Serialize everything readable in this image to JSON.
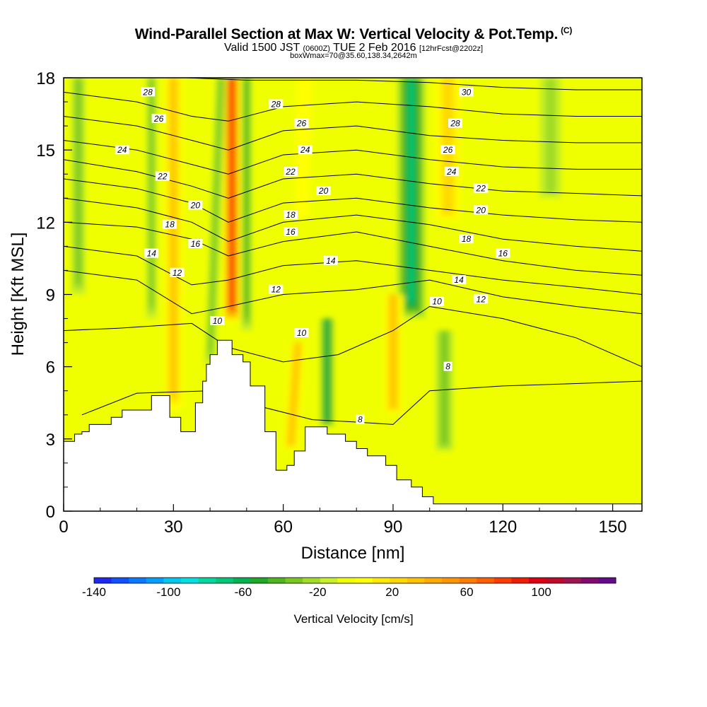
{
  "header": {
    "title": "Wind-Parallel Section at Max W: Vertical Velocity & Pot.Temp.",
    "copyright": "(C)",
    "valid_prefix": "Valid 1500 JST",
    "valid_zulu": "(0600Z)",
    "valid_date": "TUE 2 Feb 2016",
    "forecast_info": "[12hrFcst@2202z]",
    "box_info": "boxWmax=70@35.60,138.34,2642m"
  },
  "chart_data": {
    "type": "heatmap",
    "xlabel": "Distance [nm]",
    "ylabel": "Height [Kft MSL]",
    "xlim": [
      0,
      158
    ],
    "ylim": [
      0,
      18
    ],
    "x_ticks": [
      0,
      30,
      60,
      90,
      120,
      150
    ],
    "x_tick_labels": [
      "0",
      "30",
      "60",
      "90",
      "120",
      "150"
    ],
    "y_ticks": [
      0,
      3,
      6,
      9,
      12,
      15,
      18
    ],
    "y_tick_labels": [
      "0",
      "3",
      "6",
      "9",
      "12",
      "15",
      "18"
    ],
    "colorbar": {
      "label": "Vertical Velocity [cm/s]",
      "min": -140,
      "max": 140,
      "step": 10,
      "tick_values": [
        -140,
        -100,
        -60,
        -20,
        20,
        60,
        100
      ],
      "tick_labels": [
        "-140",
        "-100",
        "-60",
        "-20",
        "20",
        "60",
        "100"
      ],
      "colors": [
        "#1e28f0",
        "#0f50ff",
        "#0a78ff",
        "#00a0ff",
        "#00c8f0",
        "#00e0e0",
        "#00d8a0",
        "#00c878",
        "#00b450",
        "#20a828",
        "#50b41e",
        "#7ac81e",
        "#a0dc28",
        "#c8f028",
        "#f0ff00",
        "#ffff00",
        "#ffeb00",
        "#ffd700",
        "#ffc300",
        "#ffaa00",
        "#ff9600",
        "#ff7d00",
        "#ff5f00",
        "#ff3c00",
        "#f01e00",
        "#dc0014",
        "#be0a28",
        "#a01450",
        "#820a6e",
        "#640a8c"
      ]
    },
    "terrain_profile": {
      "x": [
        0,
        3,
        5,
        7,
        11,
        13,
        16,
        19,
        24,
        26,
        29,
        32,
        33,
        36,
        37,
        38,
        39,
        40,
        42,
        44,
        46,
        48,
        49,
        51,
        52,
        55,
        56,
        58,
        59,
        61,
        63,
        65,
        66,
        71,
        72,
        74,
        77,
        80,
        81,
        83,
        85,
        88,
        91,
        93,
        95,
        97,
        98,
        100,
        101,
        103,
        158
      ],
      "height_kft": [
        2.9,
        3.2,
        3.3,
        3.6,
        3.6,
        3.9,
        4.2,
        4.2,
        4.8,
        4.8,
        3.9,
        3.3,
        3.3,
        4.5,
        4.5,
        5.4,
        6.1,
        6.5,
        7.1,
        7.1,
        6.5,
        6.5,
        6.2,
        5.2,
        5.2,
        3.3,
        3.3,
        1.7,
        1.7,
        1.9,
        2.5,
        2.5,
        3.5,
        3.5,
        3.2,
        3.2,
        2.9,
        2.6,
        2.6,
        2.3,
        2.3,
        1.9,
        1.3,
        1.3,
        1.0,
        1.0,
        0.6,
        0.6,
        0.3,
        0.3,
        0.3
      ]
    },
    "vertical_velocity_features": [
      {
        "x": 46,
        "x_top": 46,
        "z_bottom": 7.8,
        "z_top": 18,
        "width_nm": 5,
        "value": 110
      },
      {
        "x": 50,
        "x_top": 50,
        "z_bottom": 7.5,
        "z_top": 18,
        "width_nm": 3,
        "value": -40
      },
      {
        "x": 40,
        "x_top": 43,
        "z_bottom": 6.0,
        "z_top": 18,
        "width_nm": 3,
        "value": -30
      },
      {
        "x": 30,
        "x_top": 30,
        "z_bottom": 4.0,
        "z_top": 18,
        "width_nm": 6,
        "value": 50
      },
      {
        "x": 24,
        "x_top": 24,
        "z_bottom": 8.0,
        "z_top": 18,
        "width_nm": 3,
        "value": -30
      },
      {
        "x": 95,
        "x_top": 95,
        "z_bottom": 8.0,
        "z_top": 18,
        "width_nm": 8,
        "value": -70
      },
      {
        "x": 90,
        "x_top": 90,
        "z_bottom": 4.0,
        "z_top": 9.0,
        "width_nm": 6,
        "value": 50
      },
      {
        "x": 104,
        "x_top": 104,
        "z_bottom": 2.5,
        "z_top": 7.5,
        "width_nm": 5,
        "value": -30
      },
      {
        "x": 72,
        "x_top": 72,
        "z_bottom": 3.5,
        "z_top": 8.0,
        "width_nm": 4,
        "value": -60
      },
      {
        "x": 62,
        "x_top": 64,
        "z_bottom": 2.5,
        "z_top": 7.0,
        "width_nm": 5,
        "value": 50
      },
      {
        "x": 105,
        "x_top": 105,
        "z_bottom": 12.0,
        "z_top": 18,
        "width_nm": 9,
        "value": 40
      },
      {
        "x": 4,
        "x_top": 4,
        "z_bottom": 9.0,
        "z_top": 18,
        "width_nm": 4,
        "value": -30
      },
      {
        "x": 133,
        "x_top": 133,
        "z_bottom": 13.0,
        "z_top": 18,
        "width_nm": 6,
        "value": -20
      },
      {
        "x": 65,
        "x_top": 66,
        "z_bottom": 12.0,
        "z_top": 18,
        "width_nm": 8,
        "value": 20
      }
    ],
    "theta_contours": [
      {
        "level": 8,
        "label": "8",
        "points": [
          [
            5,
            4.0
          ],
          [
            20,
            4.9
          ],
          [
            40,
            5.0
          ],
          [
            55,
            4.3
          ],
          [
            68,
            3.8
          ],
          [
            80,
            3.7
          ],
          [
            90,
            3.6
          ],
          [
            100,
            5.0
          ],
          [
            120,
            5.2
          ],
          [
            140,
            5.3
          ],
          [
            158,
            5.4
          ]
        ]
      },
      {
        "level": 10,
        "label": "10",
        "points": [
          [
            0,
            7.5
          ],
          [
            15,
            7.6
          ],
          [
            35,
            7.8
          ],
          [
            45,
            6.8
          ],
          [
            60,
            6.2
          ],
          [
            75,
            6.5
          ],
          [
            90,
            7.5
          ],
          [
            100,
            8.5
          ],
          [
            120,
            8.0
          ],
          [
            140,
            7.2
          ],
          [
            158,
            6.0
          ]
        ]
      },
      {
        "level": 12,
        "label": "12",
        "points": [
          [
            0,
            10.0
          ],
          [
            20,
            9.6
          ],
          [
            35,
            8.2
          ],
          [
            45,
            8.5
          ],
          [
            60,
            9.0
          ],
          [
            80,
            9.2
          ],
          [
            100,
            9.6
          ],
          [
            120,
            8.9
          ],
          [
            140,
            8.5
          ],
          [
            158,
            8.2
          ]
        ]
      },
      {
        "level": 14,
        "label": "14",
        "points": [
          [
            0,
            11.0
          ],
          [
            20,
            10.6
          ],
          [
            35,
            9.4
          ],
          [
            45,
            9.6
          ],
          [
            60,
            10.2
          ],
          [
            80,
            10.4
          ],
          [
            100,
            10.0
          ],
          [
            120,
            9.6
          ],
          [
            140,
            9.3
          ],
          [
            158,
            9.0
          ]
        ]
      },
      {
        "level": 16,
        "label": "16",
        "points": [
          [
            0,
            12.0
          ],
          [
            20,
            11.8
          ],
          [
            35,
            11.3
          ],
          [
            45,
            10.6
          ],
          [
            60,
            11.2
          ],
          [
            80,
            11.6
          ],
          [
            100,
            11.0
          ],
          [
            120,
            10.4
          ],
          [
            140,
            10.0
          ],
          [
            158,
            9.8
          ]
        ]
      },
      {
        "level": 18,
        "label": "18",
        "points": [
          [
            0,
            13.0
          ],
          [
            20,
            12.6
          ],
          [
            35,
            12.0
          ],
          [
            45,
            11.2
          ],
          [
            60,
            12.0
          ],
          [
            80,
            12.3
          ],
          [
            100,
            11.9
          ],
          [
            120,
            11.3
          ],
          [
            140,
            11.0
          ],
          [
            158,
            10.8
          ]
        ]
      },
      {
        "level": 20,
        "label": "20",
        "points": [
          [
            0,
            13.8
          ],
          [
            20,
            13.4
          ],
          [
            35,
            12.8
          ],
          [
            45,
            12.0
          ],
          [
            60,
            12.8
          ],
          [
            80,
            13.0
          ],
          [
            100,
            12.6
          ],
          [
            120,
            12.3
          ],
          [
            140,
            12.1
          ],
          [
            158,
            12.0
          ]
        ]
      },
      {
        "level": 22,
        "label": "22",
        "points": [
          [
            0,
            14.6
          ],
          [
            20,
            14.1
          ],
          [
            35,
            13.5
          ],
          [
            45,
            13.0
          ],
          [
            60,
            13.8
          ],
          [
            80,
            14.0
          ],
          [
            100,
            13.6
          ],
          [
            120,
            13.3
          ],
          [
            140,
            13.2
          ],
          [
            158,
            13.1
          ]
        ]
      },
      {
        "level": 24,
        "label": "24",
        "points": [
          [
            0,
            15.4
          ],
          [
            20,
            15.0
          ],
          [
            35,
            14.4
          ],
          [
            45,
            14.0
          ],
          [
            60,
            14.8
          ],
          [
            80,
            15.0
          ],
          [
            100,
            14.6
          ],
          [
            120,
            14.3
          ],
          [
            140,
            14.2
          ],
          [
            158,
            14.2
          ]
        ]
      },
      {
        "level": 26,
        "label": "26",
        "points": [
          [
            0,
            16.4
          ],
          [
            20,
            16.0
          ],
          [
            35,
            15.4
          ],
          [
            45,
            15.0
          ],
          [
            60,
            15.8
          ],
          [
            80,
            16.0
          ],
          [
            100,
            15.6
          ],
          [
            120,
            15.4
          ],
          [
            140,
            15.3
          ],
          [
            158,
            15.3
          ]
        ]
      },
      {
        "level": 28,
        "label": "28",
        "points": [
          [
            0,
            17.4
          ],
          [
            20,
            17.0
          ],
          [
            35,
            16.4
          ],
          [
            45,
            16.2
          ],
          [
            60,
            16.8
          ],
          [
            80,
            17.0
          ],
          [
            100,
            16.8
          ],
          [
            120,
            16.5
          ],
          [
            140,
            16.4
          ],
          [
            158,
            16.4
          ]
        ]
      },
      {
        "level": 30,
        "label": "30",
        "points": [
          [
            0,
            18.2
          ],
          [
            50,
            17.9
          ],
          [
            80,
            17.9
          ],
          [
            100,
            17.8
          ],
          [
            120,
            17.6
          ],
          [
            140,
            17.5
          ],
          [
            158,
            17.5
          ]
        ]
      }
    ],
    "contour_labels": [
      {
        "label": "28",
        "x": 23,
        "y": 17.4
      },
      {
        "label": "26",
        "x": 26,
        "y": 16.3
      },
      {
        "label": "24",
        "x": 16,
        "y": 15.0
      },
      {
        "label": "22",
        "x": 27,
        "y": 13.9
      },
      {
        "label": "20",
        "x": 36,
        "y": 12.7
      },
      {
        "label": "18",
        "x": 29,
        "y": 11.9
      },
      {
        "label": "16",
        "x": 36,
        "y": 11.1
      },
      {
        "label": "14",
        "x": 24,
        "y": 10.7
      },
      {
        "label": "12",
        "x": 31,
        "y": 9.9
      },
      {
        "label": "10",
        "x": 42,
        "y": 7.9
      },
      {
        "label": "28",
        "x": 58,
        "y": 16.9
      },
      {
        "label": "26",
        "x": 65,
        "y": 16.1
      },
      {
        "label": "24",
        "x": 66,
        "y": 15.0
      },
      {
        "label": "22",
        "x": 62,
        "y": 14.1
      },
      {
        "label": "20",
        "x": 71,
        "y": 13.3
      },
      {
        "label": "18",
        "x": 62,
        "y": 12.3
      },
      {
        "label": "16",
        "x": 62,
        "y": 11.6
      },
      {
        "label": "14",
        "x": 73,
        "y": 10.4
      },
      {
        "label": "12",
        "x": 58,
        "y": 9.2
      },
      {
        "label": "10",
        "x": 65,
        "y": 7.4
      },
      {
        "label": "8",
        "x": 81,
        "y": 3.8
      },
      {
        "label": "30",
        "x": 110,
        "y": 17.4
      },
      {
        "label": "28",
        "x": 107,
        "y": 16.1
      },
      {
        "label": "26",
        "x": 105,
        "y": 15.0
      },
      {
        "label": "24",
        "x": 106,
        "y": 14.1
      },
      {
        "label": "22",
        "x": 114,
        "y": 13.4
      },
      {
        "label": "20",
        "x": 114,
        "y": 12.5
      },
      {
        "label": "18",
        "x": 110,
        "y": 11.3
      },
      {
        "label": "16",
        "x": 120,
        "y": 10.7
      },
      {
        "label": "14",
        "x": 108,
        "y": 9.6
      },
      {
        "label": "12",
        "x": 114,
        "y": 8.8
      },
      {
        "label": "10",
        "x": 102,
        "y": 8.7
      },
      {
        "label": "8",
        "x": 105,
        "y": 6.0
      }
    ]
  }
}
